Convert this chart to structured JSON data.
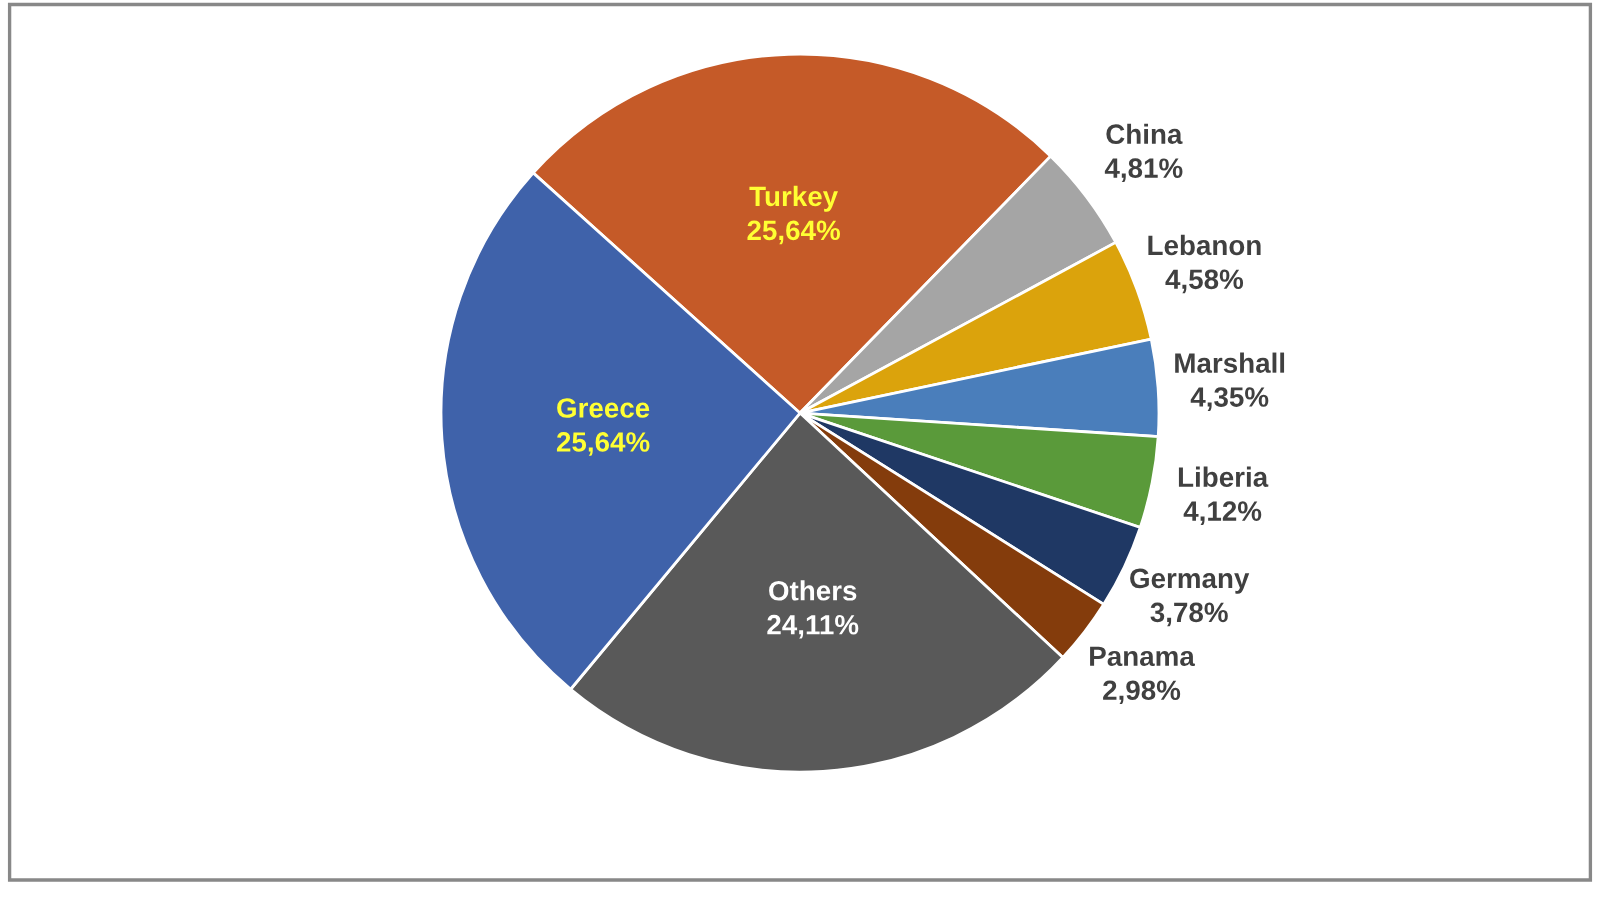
{
  "chart_data": {
    "type": "pie",
    "categories": [
      "Turkey",
      "China",
      "Lebanon",
      "Marshall",
      "Liberia",
      "Germany",
      "Panama",
      "Others",
      "Greece"
    ],
    "values": [
      25.64,
      4.81,
      4.58,
      4.35,
      4.12,
      3.78,
      2.98,
      24.11,
      25.64
    ],
    "value_labels": [
      "25,64%",
      "4,81%",
      "4,58%",
      "4,35%",
      "4,12%",
      "3,78%",
      "2,98%",
      "24,11%",
      "25,64%"
    ],
    "colors": [
      "#c55a28",
      "#a5a5a5",
      "#dba30c",
      "#4a7ebb",
      "#5a9a3a",
      "#1f3864",
      "#843c0c",
      "#595959",
      "#3f62aa"
    ],
    "legend": false
  }
}
